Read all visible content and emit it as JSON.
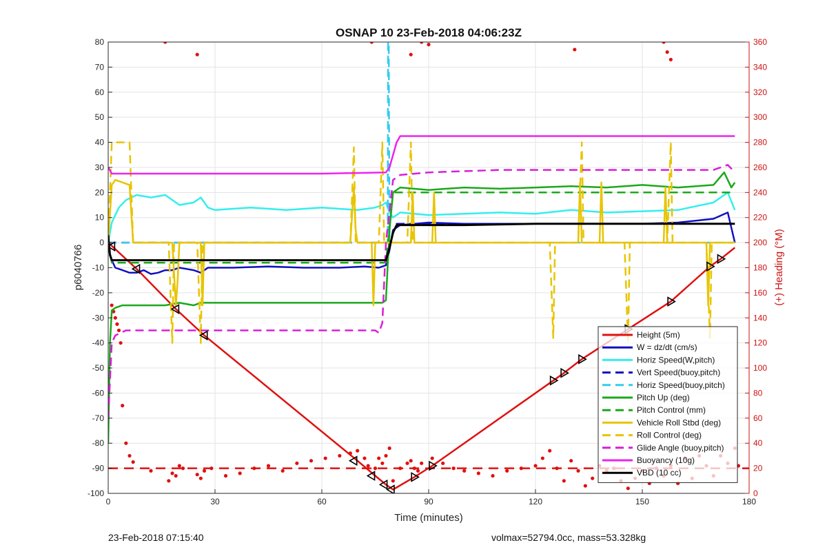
{
  "chart_data": {
    "type": "line",
    "title": "OSNAP 10 23-Feb-2018 04:06:23Z",
    "xlabel": "Time (minutes)",
    "ylabel": "p6040766",
    "y2label": "(+) Heading (°M)",
    "xlim": [
      0,
      180
    ],
    "ylim": [
      -100,
      80
    ],
    "y2lim": [
      0,
      360
    ],
    "xticks": [
      0,
      30,
      60,
      90,
      120,
      150,
      180
    ],
    "yticks": [
      -100,
      -90,
      -80,
      -70,
      -60,
      -50,
      -40,
      -30,
      -20,
      -10,
      0,
      10,
      20,
      30,
      40,
      50,
      60,
      70,
      80
    ],
    "y2ticks": [
      0,
      20,
      40,
      60,
      80,
      100,
      120,
      140,
      160,
      180,
      200,
      220,
      240,
      260,
      280,
      300,
      320,
      340,
      360
    ],
    "grid": true,
    "legend_position": "bottom-right",
    "series": [
      {
        "name": "Height (5m)",
        "color": "#e01010",
        "style": "solid",
        "width": 2.5,
        "x": [
          0,
          8,
          19,
          27,
          70,
          75,
          78,
          80,
          86,
          91,
          125,
          128,
          133,
          146,
          158,
          169,
          172,
          176
        ],
        "y": [
          0,
          -10.5,
          -26.5,
          -37,
          -87,
          -93,
          -96.5,
          -98.5,
          -93.5,
          -89,
          -55,
          -52,
          -46.5,
          -34.5,
          -23.5,
          -9.5,
          -6.5,
          -2
        ]
      },
      {
        "name": "W = dz/dt (cm/s)",
        "color": "#1010c0",
        "style": "solid",
        "width": 2.5,
        "x": [
          0,
          1,
          2,
          4,
          6,
          8,
          10,
          12,
          14,
          16,
          18,
          20,
          22,
          24,
          26,
          28,
          35,
          45,
          55,
          65,
          72,
          76,
          78,
          79,
          80,
          82,
          90,
          100,
          110,
          120,
          130,
          140,
          150,
          160,
          170,
          174,
          176
        ],
        "y": [
          -2,
          -7,
          -10,
          -11,
          -12,
          -12,
          -11,
          -12.5,
          -12,
          -11,
          -11,
          -10,
          -10.5,
          -11,
          -12,
          -10,
          -10,
          -9.5,
          -10,
          -10,
          -9.5,
          -10,
          -9,
          -3,
          5,
          7,
          8,
          7.5,
          7.5,
          7.5,
          7.5,
          7.5,
          7.5,
          8,
          9.5,
          12,
          0
        ]
      },
      {
        "name": "Horiz Speed(W,pitch)",
        "color": "#33eeee",
        "style": "solid",
        "width": 2.5,
        "x": [
          0,
          1,
          2,
          3,
          5,
          8,
          12,
          16,
          20,
          24,
          26,
          28,
          30,
          40,
          50,
          60,
          70,
          75,
          77,
          78,
          79,
          80,
          82,
          90,
          100,
          110,
          120,
          130,
          140,
          150,
          160,
          170,
          174,
          176
        ],
        "y": [
          0,
          8,
          11,
          14,
          17,
          19,
          18,
          19,
          15,
          16,
          18,
          14,
          13,
          14,
          13,
          14,
          13,
          14,
          15,
          16,
          12,
          10,
          12,
          11,
          11.5,
          12,
          11.5,
          13,
          12,
          12.5,
          13,
          16,
          20,
          13
        ]
      },
      {
        "name": "Vert Speed(buoy,pitch)",
        "color": "#1010c0",
        "style": "dashed",
        "width": 2.5,
        "x": [
          0,
          79,
          81,
          176
        ],
        "y": [
          0,
          0,
          7.5,
          7.5
        ]
      },
      {
        "name": "Horiz Speed(buoy,pitch)",
        "color": "#33ccee",
        "style": "dashed",
        "width": 2.5,
        "x": [
          0,
          78.5,
          78.6,
          78.8,
          79,
          80,
          176
        ],
        "y": [
          0,
          0,
          80,
          80,
          0,
          0,
          0
        ]
      },
      {
        "name": "Pitch Up (deg)",
        "color": "#1aa81a",
        "style": "solid",
        "width": 2.5,
        "x": [
          0,
          0.5,
          1,
          2,
          4,
          8,
          12,
          16,
          20,
          24,
          26,
          28,
          40,
          50,
          60,
          70,
          75,
          77,
          78,
          79,
          80,
          82,
          90,
          100,
          110,
          120,
          130,
          140,
          150,
          160,
          170,
          173,
          175,
          176
        ],
        "y": [
          -80,
          -40,
          -27,
          -26,
          -25,
          -25,
          -25,
          -25,
          -24,
          -25,
          -24,
          -24,
          -24,
          -24,
          -24,
          -24,
          -24,
          -24,
          -23,
          5,
          20,
          22,
          21,
          22,
          21.5,
          22,
          22.5,
          22,
          23,
          22,
          23,
          28,
          22,
          24
        ]
      },
      {
        "name": "Pitch Control (mm)",
        "color": "#1aa81a",
        "style": "dashed",
        "width": 2.5,
        "x": [
          0,
          1,
          78,
          80,
          176
        ],
        "y": [
          0,
          -8,
          -8,
          20,
          20
        ]
      },
      {
        "name": "Vehicle Roll Stbd (deg)",
        "color": "#e8c400",
        "style": "solid",
        "width": 2.5,
        "x": [
          0,
          1,
          2,
          6,
          7,
          8,
          18,
          19,
          19.5,
          20,
          26,
          26.5,
          27,
          40,
          68,
          69,
          69.5,
          70,
          74,
          74.5,
          75,
          78,
          79,
          80,
          85,
          85.5,
          86,
          91,
          91.5,
          92,
          110,
          130,
          132,
          132.5,
          133,
          138,
          138.5,
          139,
          150,
          156,
          156.5,
          157,
          168,
          168.5,
          169,
          176
        ],
        "y": [
          0,
          23,
          25,
          23,
          0,
          0,
          0,
          -25,
          -15,
          0,
          0,
          -25,
          0,
          0,
          0,
          22,
          5,
          0,
          0,
          -25,
          0,
          0,
          0,
          0,
          0,
          20,
          0,
          0,
          20,
          0,
          0,
          0,
          0,
          24,
          0,
          0,
          24,
          0,
          0,
          0,
          22,
          0,
          0,
          -25,
          0,
          0
        ]
      },
      {
        "name": "Roll Control (deg)",
        "color": "#e8c400",
        "style": "dashed",
        "width": 2.5,
        "x": [
          0,
          1,
          2,
          6,
          7,
          8,
          17,
          18,
          18.5,
          19,
          25,
          26,
          26.5,
          27,
          68,
          69,
          69.5,
          70,
          76,
          77,
          77.5,
          78,
          84,
          85,
          85.5,
          86,
          124,
          125,
          125.5,
          126,
          132,
          133,
          133.5,
          134,
          145,
          146,
          146.5,
          147,
          157,
          158,
          158.5,
          159,
          168,
          169,
          169.5,
          170,
          176
        ],
        "y": [
          0,
          40,
          40,
          40,
          0,
          0,
          0,
          -40,
          0,
          0,
          0,
          -40,
          0,
          0,
          0,
          38,
          0,
          0,
          0,
          40,
          0,
          0,
          0,
          40,
          0,
          0,
          0,
          -38,
          0,
          0,
          0,
          40,
          0,
          0,
          0,
          -40,
          0,
          0,
          0,
          40,
          0,
          0,
          0,
          -38,
          0,
          0,
          0
        ]
      },
      {
        "name": "Glide Angle (buoy,pitch)",
        "color": "#d81ed8",
        "style": "dashed",
        "width": 2.5,
        "x": [
          0,
          1,
          2,
          5,
          30,
          60,
          75,
          76,
          77,
          78,
          80,
          82,
          90,
          110,
          130,
          150,
          170,
          174,
          176
        ],
        "y": [
          -70,
          -40,
          -37,
          -35,
          -35,
          -35,
          -35,
          -36,
          -32,
          0,
          25,
          27,
          28,
          29,
          29,
          29,
          29,
          31,
          28
        ]
      },
      {
        "name": "Buoyancy (10g)",
        "color": "#ee22ee",
        "style": "solid",
        "width": 2.5,
        "x": [
          0,
          1,
          20,
          40,
          60,
          78,
          79,
          81,
          82,
          176
        ],
        "y": [
          30,
          27.5,
          27.5,
          27.5,
          27.5,
          28,
          30,
          40,
          42.5,
          42.5
        ]
      },
      {
        "name": "VBD (10 cc)",
        "color": "#000000",
        "style": "solid",
        "width": 3,
        "x": [
          0,
          0.5,
          1,
          2,
          10,
          30,
          60,
          77,
          78,
          79,
          80,
          81,
          82,
          100,
          120,
          140,
          160,
          176
        ],
        "y": [
          3,
          -5,
          -7,
          -7,
          -7,
          -7,
          -7,
          -7,
          -7,
          -2,
          4,
          7,
          7,
          7,
          7.5,
          7.5,
          7.5,
          7.5
        ]
      }
    ],
    "heading_points": {
      "name": "Heading",
      "axis": "right",
      "color": "#e01010",
      "x": [
        4,
        5,
        6,
        7,
        12,
        17,
        18,
        19,
        20,
        21,
        25,
        26,
        27,
        29,
        33,
        37,
        41,
        45,
        49,
        53,
        57,
        61,
        65,
        68,
        70,
        72,
        73,
        75,
        76,
        77,
        78,
        79,
        80,
        82,
        84,
        85,
        86,
        87,
        88,
        91,
        94,
        97,
        100,
        104,
        108,
        112,
        116,
        120,
        122,
        124,
        126,
        128,
        130,
        132,
        134,
        136,
        138,
        140,
        142,
        144,
        146,
        148,
        150,
        152,
        154,
        156,
        158,
        160,
        162,
        164,
        166,
        168,
        170,
        172,
        174,
        176,
        177,
        2,
        3,
        3.5,
        1,
        1.5,
        2.5,
        16,
        25,
        74,
        85,
        88,
        90,
        131,
        156,
        157,
        158
      ],
      "y": [
        70,
        40,
        30,
        25,
        18,
        10,
        16,
        14,
        22,
        20,
        15,
        12,
        18,
        20,
        14,
        16,
        20,
        22,
        18,
        24,
        26,
        28,
        30,
        32,
        34,
        28,
        22,
        20,
        28,
        24,
        30,
        36,
        10,
        20,
        24,
        26,
        20,
        18,
        24,
        28,
        24,
        20,
        18,
        16,
        14,
        18,
        20,
        22,
        28,
        34,
        20,
        10,
        26,
        18,
        6,
        12,
        22,
        18,
        20,
        10,
        4,
        12,
        18,
        8,
        20,
        14,
        22,
        8,
        28,
        12,
        30,
        22,
        14,
        30,
        24,
        36,
        22,
        140,
        130,
        120,
        150,
        145,
        135,
        360,
        350,
        360,
        350,
        360,
        358,
        354,
        360,
        352,
        346
      ]
    },
    "heading_mean": 20,
    "direction_marks": [
      {
        "x": 1,
        "y": -1.5,
        "dir": "left"
      },
      {
        "x": 8,
        "y": -10.5,
        "dir": "left"
      },
      {
        "x": 19,
        "y": -26.5,
        "dir": "left"
      },
      {
        "x": 27,
        "y": -37,
        "dir": "left"
      },
      {
        "x": 69,
        "y": -87,
        "dir": "left"
      },
      {
        "x": 74,
        "y": -93,
        "dir": "left"
      },
      {
        "x": 77.5,
        "y": -96.5,
        "dir": "left"
      },
      {
        "x": 79.5,
        "y": -98.5,
        "dir": "left"
      },
      {
        "x": 86,
        "y": -93.5,
        "dir": "right"
      },
      {
        "x": 91,
        "y": -89,
        "dir": "right"
      },
      {
        "x": 125,
        "y": -55,
        "dir": "right"
      },
      {
        "x": 128,
        "y": -52,
        "dir": "right"
      },
      {
        "x": 133,
        "y": -46.5,
        "dir": "right"
      },
      {
        "x": 146,
        "y": -34.5,
        "dir": "right"
      },
      {
        "x": 158,
        "y": -23.5,
        "dir": "right"
      },
      {
        "x": 169,
        "y": -9.5,
        "dir": "right"
      },
      {
        "x": 172,
        "y": -6.5,
        "dir": "right"
      }
    ]
  },
  "footer": {
    "left": "23-Feb-2018 07:15:40",
    "right": "volmax=52794.0cc, mass=53.328kg"
  }
}
